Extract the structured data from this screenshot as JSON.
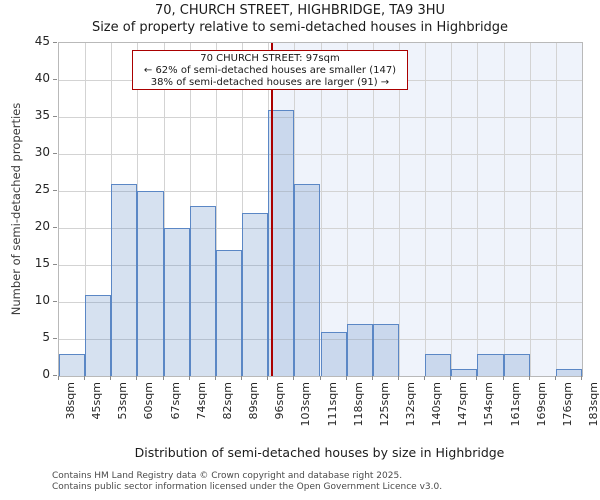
{
  "header": {
    "title": "70, CHURCH STREET, HIGHBRIDGE, TA9 3HU",
    "subtitle": "Size of property relative to semi-detached houses in Highbridge"
  },
  "annotation": {
    "line1": "70 CHURCH STREET: 97sqm",
    "line2": "← 62% of semi-detached houses are smaller (147)",
    "line3": "38% of semi-detached houses are larger (91) →"
  },
  "axes": {
    "ylabel": "Number of semi-detached properties",
    "xlabel": "Distribution of semi-detached houses by size in Highbridge"
  },
  "footer": {
    "line1": "Contains HM Land Registry data © Crown copyright and database right 2025.",
    "line2": "Contains public sector information licensed under the Open Government Licence v3.0."
  },
  "colors": {
    "bar_fill": "rgba(91,135,197,0.25)",
    "bar_edge": "#5b87c5",
    "marker_line": "#aa0000",
    "annotation_border": "#aa0000",
    "shade": "#eff3fb",
    "grid": "#d3d3d3",
    "spine": "#b9b9b9"
  },
  "chart_data": {
    "type": "bar",
    "title": "70, CHURCH STREET, HIGHBRIDGE, TA9 3HU",
    "subtitle": "Size of property relative to semi-detached houses in Highbridge",
    "xlabel": "Distribution of semi-detached houses by size in Highbridge",
    "ylabel": "Number of semi-detached properties",
    "bin_edges_sqm": [
      38,
      45,
      53,
      60,
      67,
      74,
      82,
      89,
      96,
      103,
      111,
      118,
      125,
      132,
      140,
      147,
      154,
      161,
      169,
      176,
      183
    ],
    "tick_labels": [
      "38sqm",
      "45sqm",
      "53sqm",
      "60sqm",
      "67sqm",
      "74sqm",
      "82sqm",
      "89sqm",
      "96sqm",
      "103sqm",
      "111sqm",
      "118sqm",
      "125sqm",
      "132sqm",
      "140sqm",
      "147sqm",
      "154sqm",
      "161sqm",
      "169sqm",
      "176sqm",
      "183sqm"
    ],
    "values": [
      3,
      11,
      26,
      25,
      20,
      23,
      17,
      22,
      36,
      26,
      6,
      7,
      7,
      0,
      3,
      1,
      3,
      3,
      0,
      1
    ],
    "ylim": [
      0,
      45
    ],
    "ytick_step": 5,
    "grid": true,
    "legend": "none",
    "marker": {
      "value_sqm": 97,
      "label": "70 CHURCH STREET: 97sqm",
      "smaller_pct": 62,
      "smaller_count": 147,
      "larger_pct": 38,
      "larger_count": 91
    }
  }
}
